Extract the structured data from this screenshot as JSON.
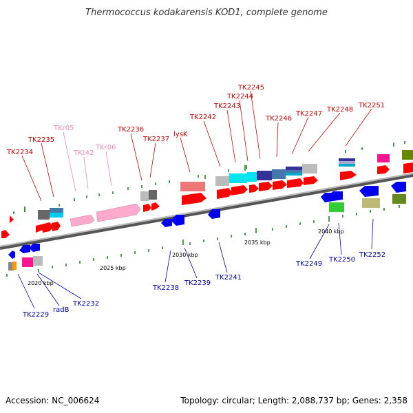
{
  "title": "Thermococcus kodakarensis KOD1, complete genome",
  "footer": {
    "accession": "Accession: NC_006624",
    "topology": "Topology: circular; Length: 2,088,737 bp; Genes: 2,358"
  },
  "scale": {
    "ticks": [
      "2020 kbp",
      "2025 kbp",
      "2030 kbp",
      "2035 kbp",
      "2040 kbp"
    ]
  },
  "genes_top": [
    {
      "label": "TK2234",
      "color": "#cc0000"
    },
    {
      "label": "TK2235",
      "color": "#cc0000"
    },
    {
      "label": "TKr05",
      "color": "#ee88bb"
    },
    {
      "label": "TKt42",
      "color": "#ee88bb"
    },
    {
      "label": "TKr06",
      "color": "#ee88bb"
    },
    {
      "label": "TK2236",
      "color": "#cc0000"
    },
    {
      "label": "TK2237",
      "color": "#cc0000"
    },
    {
      "label": "lysK",
      "color": "#cc0000"
    },
    {
      "label": "TK2242",
      "color": "#cc0000"
    },
    {
      "label": "TK2243",
      "color": "#cc0000"
    },
    {
      "label": "TK2244",
      "color": "#cc0000"
    },
    {
      "label": "TK2245",
      "color": "#cc0000"
    },
    {
      "label": "TK2246",
      "color": "#cc0000"
    },
    {
      "label": "TK2247",
      "color": "#cc0000"
    },
    {
      "label": "TK2248",
      "color": "#cc0000"
    },
    {
      "label": "TK2251",
      "color": "#cc0000"
    }
  ],
  "genes_bottom": [
    {
      "label": "TK2229",
      "color": "#0000aa"
    },
    {
      "label": "radB",
      "color": "#0000aa"
    },
    {
      "label": "TK2232",
      "color": "#0000aa"
    },
    {
      "label": "TK2238",
      "color": "#0000aa"
    },
    {
      "label": "TK2239",
      "color": "#0000aa"
    },
    {
      "label": "TK2241",
      "color": "#0000aa"
    },
    {
      "label": "TK2249",
      "color": "#0000aa"
    },
    {
      "label": "TK2250",
      "color": "#0000aa"
    },
    {
      "label": "TK2252",
      "color": "#0000aa"
    }
  ]
}
